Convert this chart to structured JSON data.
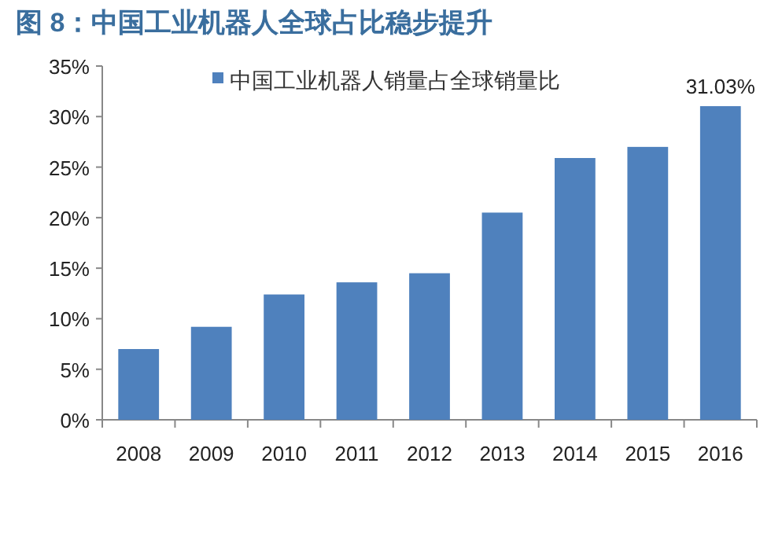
{
  "chart_data": {
    "type": "bar",
    "title": "图 8：中国工业机器人全球占比稳步提升",
    "categories": [
      "2008",
      "2009",
      "2010",
      "2011",
      "2012",
      "2013",
      "2014",
      "2015",
      "2016"
    ],
    "series": [
      {
        "name": "中国工业机器人销量占全球销量比",
        "color": "#4f81bd",
        "values": [
          7.0,
          9.2,
          12.4,
          13.6,
          14.5,
          20.5,
          25.9,
          27.0,
          31.03
        ],
        "value_labels": [
          null,
          null,
          null,
          null,
          null,
          null,
          null,
          null,
          "31.03%"
        ]
      }
    ],
    "ylim": [
      0,
      35
    ],
    "yticks": [
      {
        "value": 0,
        "label": "0%"
      },
      {
        "value": 5,
        "label": "5%"
      },
      {
        "value": 10,
        "label": "10%"
      },
      {
        "value": 15,
        "label": "15%"
      },
      {
        "value": 20,
        "label": "20%"
      },
      {
        "value": 25,
        "label": "25%"
      },
      {
        "value": 30,
        "label": "30%"
      },
      {
        "value": 35,
        "label": "35%"
      }
    ],
    "grid": false,
    "legend": "top"
  }
}
